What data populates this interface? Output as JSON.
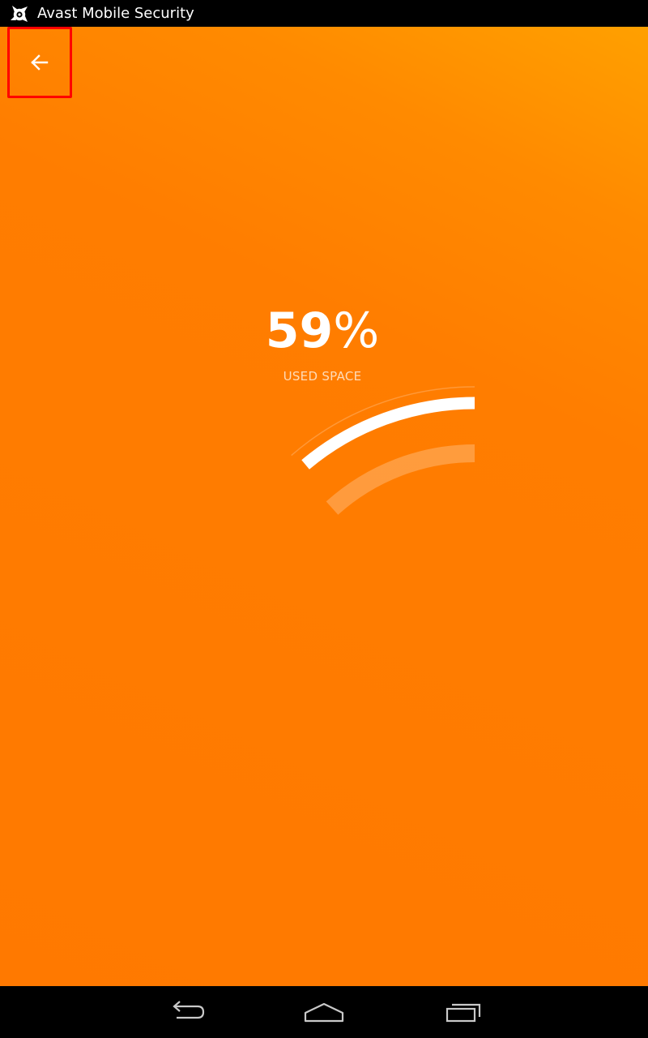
{
  "app": {
    "title": "Avast Mobile Security"
  },
  "toolbar": {
    "back_icon": "arrow-left-icon",
    "highlight_color": "#ff0000"
  },
  "storage": {
    "used_value": "59",
    "used_sign": "%",
    "used_fraction": 0.59,
    "label": "USED SPACE"
  },
  "colors": {
    "background": "#ff7a00",
    "background_top": "#ffa000",
    "gauge": "#ffffff"
  },
  "nav": {
    "items": [
      "back-icon",
      "home-icon",
      "recent-apps-icon"
    ]
  }
}
